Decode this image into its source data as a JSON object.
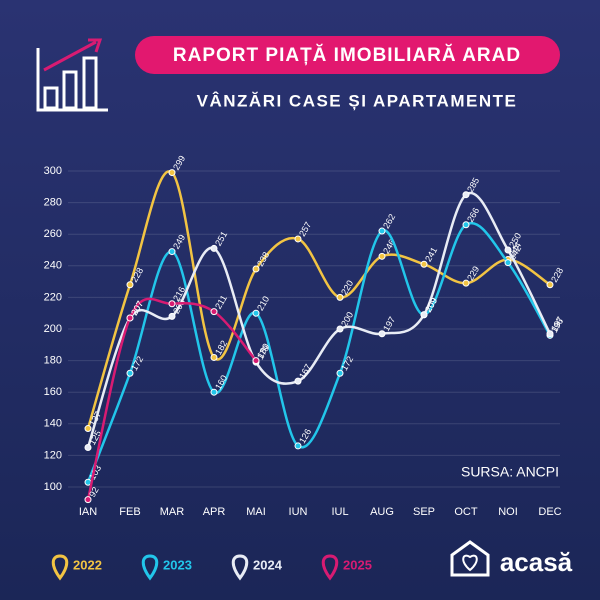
{
  "chart_data": {
    "type": "line",
    "title": "RAPORT PIAȚĂ IMOBILIARĂ ARAD",
    "subtitle": "VÂNZĂRI CASE ȘI APARTAMENTE",
    "source": "SURSA: ANCPI",
    "brand": "acasă",
    "categories": [
      "IAN",
      "FEB",
      "MAR",
      "APR",
      "MAI",
      "IUN",
      "IUL",
      "AUG",
      "SEP",
      "OCT",
      "NOI",
      "DEC"
    ],
    "ylim": [
      100,
      300
    ],
    "yticks": [
      100,
      120,
      140,
      160,
      180,
      200,
      220,
      240,
      260,
      280,
      300
    ],
    "grid": true,
    "series": [
      {
        "name": "2022",
        "color": "#f2c443",
        "values": [
          137,
          228,
          299,
          182,
          238,
          257,
          220,
          246,
          241,
          229,
          244,
          228
        ]
      },
      {
        "name": "2023",
        "color": "#22c6ea",
        "values": [
          103,
          172,
          249,
          160,
          210,
          126,
          172,
          262,
          209,
          266,
          242,
          196
        ]
      },
      {
        "name": "2024",
        "color": "#e8ecf5",
        "values": [
          125,
          207,
          208,
          251,
          179,
          167,
          200,
          197,
          209,
          285,
          250,
          197
        ]
      },
      {
        "name": "2025",
        "color": "#d81b72",
        "values": [
          92,
          207,
          216,
          211,
          180,
          null,
          null,
          null,
          null,
          null,
          null,
          null
        ]
      }
    ]
  }
}
